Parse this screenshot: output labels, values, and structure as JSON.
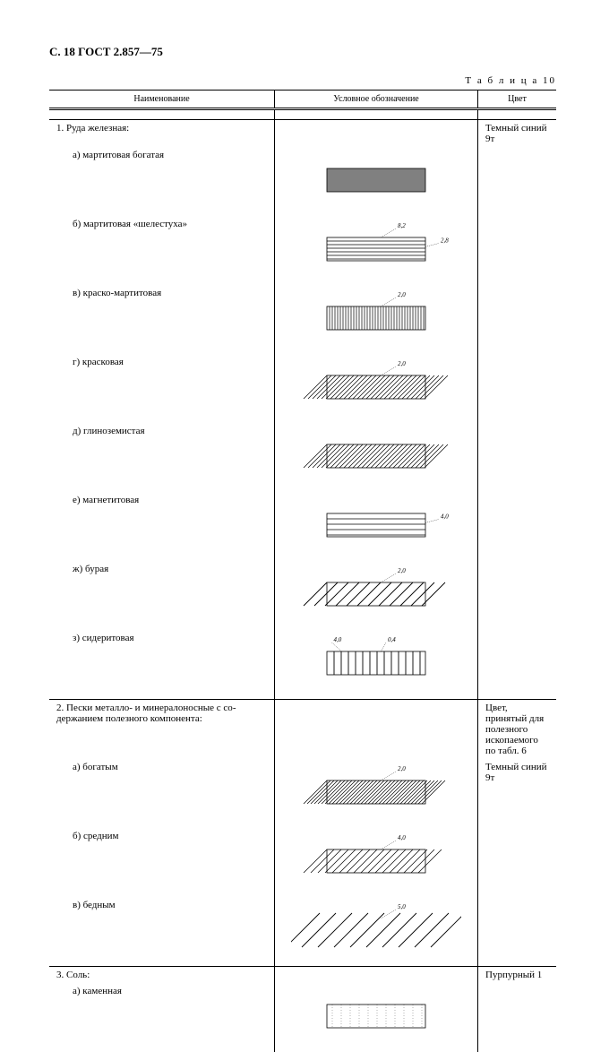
{
  "page_header": "С. 18  ГОСТ 2.857—75",
  "table_caption": "Т а б л и ц а 10",
  "columns": {
    "name": "Наименование",
    "symbol": "Условное обозначение",
    "color": "Цвет"
  },
  "swatch_border_color": "#000000",
  "swatch_width": 110,
  "swatch_height": 26,
  "sections": [
    {
      "title": "1. Руда железная:",
      "color_text": "Темный синий 9т",
      "items": [
        {
          "label": "а) мартитовая богатая",
          "swatch": "solid_gray"
        },
        {
          "label": "б) мартитовая «шелестуха»",
          "swatch": "horiz",
          "dim_top": "8,2",
          "dim_side": "2,8"
        },
        {
          "label": "в) краско-мартитовая",
          "swatch": "vert",
          "dim_top": "2,0"
        },
        {
          "label": "г) красковая",
          "swatch": "hatch_r",
          "dim_top": "2,0"
        },
        {
          "label": "д) глиноземистая",
          "swatch": "hatch_l"
        },
        {
          "label": "е) магнетитовая",
          "swatch": "horiz_sparse",
          "dim_side": "4,0"
        },
        {
          "label": "ж) бурая",
          "swatch": "diag_wide",
          "dim_top": "2,0"
        },
        {
          "label": "з) сидеритовая",
          "swatch": "vert_wide",
          "dim_top_left": "4,0",
          "dim_top_right": "0,4"
        }
      ]
    },
    {
      "title": "2. Пески металло- и минералоносные с со­держанием полезного компонента:",
      "color_pre": "Цвет, принятый для полезного иско­паемого по табл. 6",
      "items": [
        {
          "label": "а) богатым",
          "swatch": "hatch_dense",
          "dim_top": "2,0",
          "color_text": "Темный синий 9т"
        },
        {
          "label": "б) средним",
          "swatch": "hatch_medium",
          "dim_top": "4,0"
        },
        {
          "label": "в) бедным",
          "swatch": "hatch_open",
          "dim_top": "5,0"
        }
      ]
    },
    {
      "title": "3. Соль:",
      "color_text": "Пурпурный 1",
      "items": [
        {
          "label": "а) каменная",
          "swatch": "faint"
        }
      ]
    }
  ],
  "colors": {
    "solid_gray": "#808080",
    "line": "#000000"
  }
}
